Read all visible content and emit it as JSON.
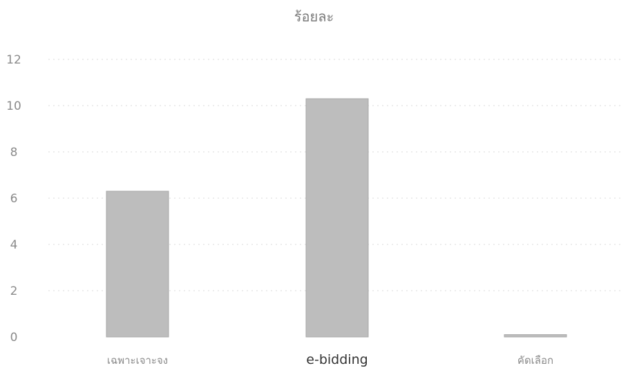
{
  "chart_data": {
    "type": "bar",
    "title": "ร้อยละ",
    "categories": [
      "เฉพาะเจาะจง",
      "e-bidding",
      "คัดเลือก"
    ],
    "values": [
      6.3,
      10.3,
      0.1
    ],
    "ylim": [
      0,
      12
    ],
    "y_ticks": [
      "0",
      "2",
      "4",
      "6",
      "8",
      "10",
      "12"
    ],
    "xlabel": "",
    "ylabel": "",
    "grid": true,
    "bar_color": "#bdbdbd",
    "grid_color": "#d9d9d9"
  }
}
